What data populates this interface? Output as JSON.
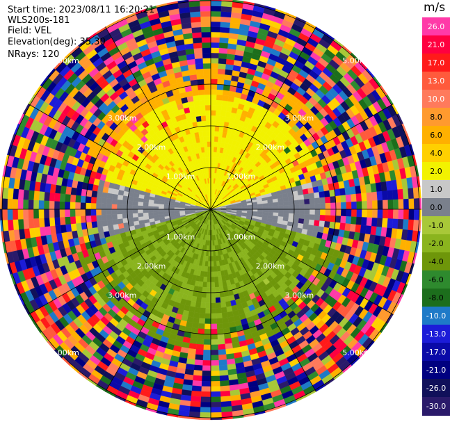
{
  "header": {
    "start_time": "Start time: 2023/08/11 16:20:21",
    "instrument": "WLS200s-181",
    "field": "Field: VEL",
    "elevation": "Elevation(deg): 35.30",
    "nrays": "NRays: 120"
  },
  "colorbar": {
    "unit": "m/s",
    "labels": [
      "26.0",
      "21.0",
      "17.0",
      "13.0",
      "10.0",
      "8.0",
      "6.0",
      "4.0",
      "2.0",
      "1.0",
      "0.0",
      "-1.0",
      "-2.0",
      "-4.0",
      "-6.0",
      "-8.0",
      "-10.0",
      "-13.0",
      "-17.0",
      "-21.0",
      "-26.0",
      "-30.0"
    ],
    "colors": [
      "#ff3aa8",
      "#ff0040",
      "#ff1a1a",
      "#ff5a3c",
      "#ff7a5c",
      "#ff9a2e",
      "#ffb000",
      "#ffd000",
      "#f2f200",
      "#c8c8c8",
      "#7a808c",
      "#a8c838",
      "#8ab41e",
      "#6e960a",
      "#2e8a2e",
      "#1c6e1c",
      "#1e7ac8",
      "#1c1cd8",
      "#0a0aa8",
      "#000080",
      "#10105a",
      "#2a1a6a"
    ]
  },
  "chart_data": {
    "type": "heatmap",
    "projection": "polar (PPI)",
    "field": "VEL",
    "units": "m/s",
    "elevation_deg": 35.3,
    "nrays": 120,
    "range_labels": [
      "1.00km",
      "2.00km",
      "3.00km",
      "5.00km"
    ],
    "ring_ranges_km": [
      1,
      2,
      3,
      5
    ],
    "colorscale_min": -30.0,
    "colorscale_max": 26.0,
    "spoke_angles_deg": [
      0,
      30,
      60,
      90,
      120,
      150,
      180,
      210,
      240,
      270,
      300,
      330
    ]
  }
}
